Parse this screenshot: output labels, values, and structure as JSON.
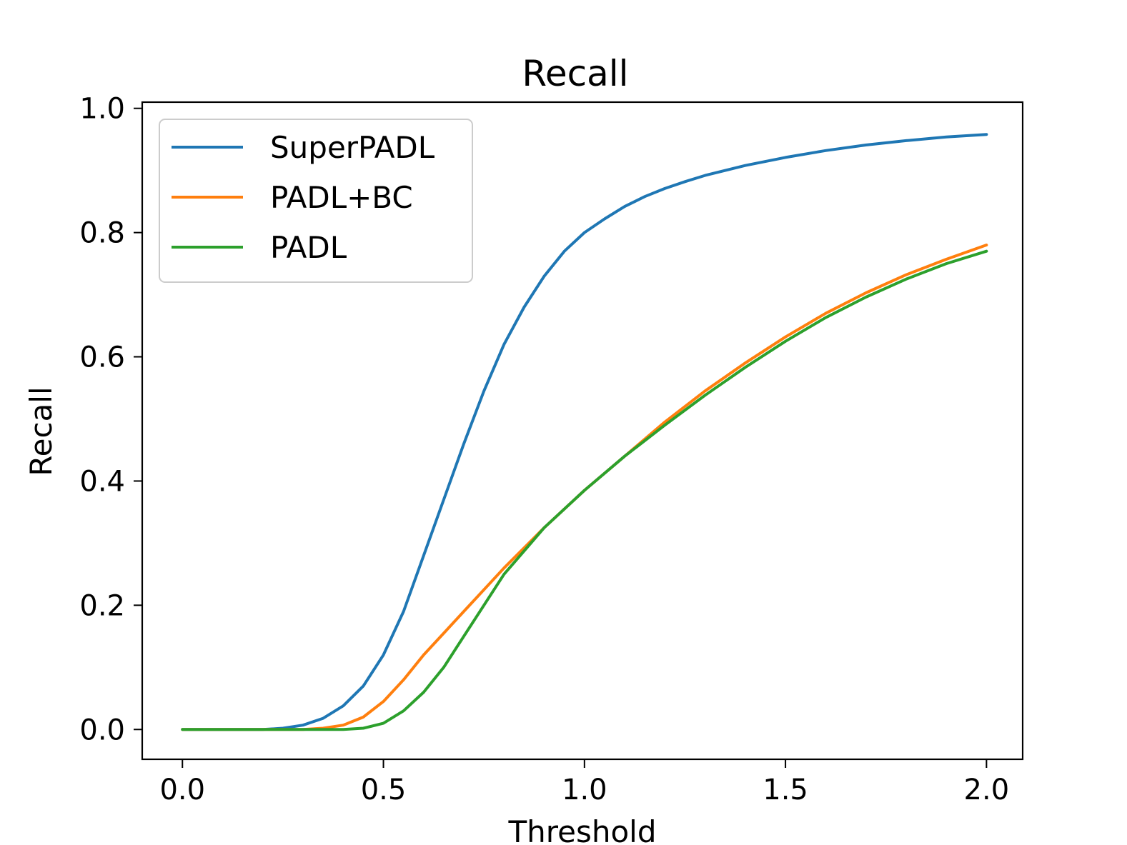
{
  "chart_data": {
    "type": "line",
    "title": "Recall",
    "xlabel": "Threshold",
    "ylabel": "Recall",
    "xlim": [
      -0.1,
      2.09
    ],
    "ylim": [
      -0.048,
      1.01
    ],
    "xticks": [
      "0.0",
      "0.5",
      "1.0",
      "1.5",
      "2.0"
    ],
    "xtick_values": [
      0.0,
      0.5,
      1.0,
      1.5,
      2.0
    ],
    "yticks": [
      "0.0",
      "0.2",
      "0.4",
      "0.6",
      "0.8",
      "1.0"
    ],
    "ytick_values": [
      0.0,
      0.2,
      0.4,
      0.6,
      0.8,
      1.0
    ],
    "grid": false,
    "legend_position": "upper-left",
    "series": [
      {
        "name": "SuperPADL",
        "color": "#1f77b4",
        "x": [
          0.0,
          0.1,
          0.2,
          0.25,
          0.3,
          0.35,
          0.4,
          0.45,
          0.5,
          0.55,
          0.6,
          0.65,
          0.7,
          0.75,
          0.8,
          0.85,
          0.9,
          0.95,
          1.0,
          1.05,
          1.1,
          1.15,
          1.2,
          1.25,
          1.3,
          1.4,
          1.5,
          1.6,
          1.7,
          1.8,
          1.9,
          2.0
        ],
        "y": [
          0.0,
          0.0,
          0.0,
          0.002,
          0.007,
          0.018,
          0.038,
          0.07,
          0.12,
          0.19,
          0.28,
          0.37,
          0.46,
          0.545,
          0.62,
          0.68,
          0.73,
          0.77,
          0.8,
          0.822,
          0.842,
          0.858,
          0.871,
          0.882,
          0.892,
          0.908,
          0.921,
          0.932,
          0.941,
          0.948,
          0.954,
          0.958
        ]
      },
      {
        "name": "PADL+BC",
        "color": "#ff7f0e",
        "x": [
          0.0,
          0.1,
          0.2,
          0.3,
          0.35,
          0.4,
          0.45,
          0.5,
          0.55,
          0.6,
          0.65,
          0.7,
          0.8,
          0.9,
          1.0,
          1.1,
          1.2,
          1.3,
          1.4,
          1.5,
          1.6,
          1.7,
          1.8,
          1.9,
          2.0
        ],
        "y": [
          0.0,
          0.0,
          0.0,
          0.0,
          0.002,
          0.007,
          0.02,
          0.045,
          0.08,
          0.12,
          0.155,
          0.19,
          0.26,
          0.325,
          0.385,
          0.44,
          0.495,
          0.545,
          0.59,
          0.632,
          0.67,
          0.703,
          0.732,
          0.757,
          0.78
        ]
      },
      {
        "name": "PADL",
        "color": "#2ca02c",
        "x": [
          0.0,
          0.1,
          0.2,
          0.3,
          0.4,
          0.45,
          0.5,
          0.55,
          0.6,
          0.65,
          0.7,
          0.75,
          0.8,
          0.9,
          1.0,
          1.1,
          1.2,
          1.3,
          1.4,
          1.5,
          1.6,
          1.7,
          1.8,
          1.9,
          2.0
        ],
        "y": [
          0.0,
          0.0,
          0.0,
          0.0,
          0.0,
          0.002,
          0.01,
          0.03,
          0.06,
          0.1,
          0.15,
          0.2,
          0.25,
          0.325,
          0.385,
          0.44,
          0.49,
          0.538,
          0.583,
          0.625,
          0.663,
          0.696,
          0.725,
          0.75,
          0.77
        ]
      }
    ]
  }
}
